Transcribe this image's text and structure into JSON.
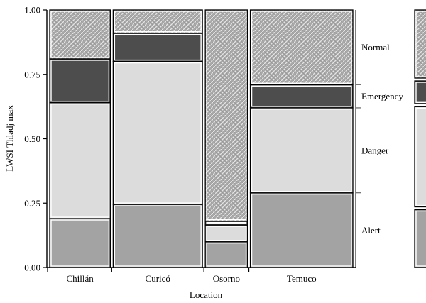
{
  "chart_data": {
    "type": "mosaic",
    "xlabel": "Location",
    "ylabel": "LWSI Thladj max",
    "ylim": [
      0,
      1
    ],
    "yticks": [
      "0.00",
      "0.25",
      "0.50",
      "0.75",
      "1.00"
    ],
    "levels": [
      "Alert",
      "Danger",
      "Emergency",
      "Normal"
    ],
    "level_colors": {
      "Alert": "#a3a3a3",
      "Danger": "#dcdcdc",
      "Emergency": "#4d4d4d",
      "Normal": "#b9b9b9"
    },
    "categories": [
      "Chillán",
      "Curicó",
      "Osorno",
      "Temuco"
    ],
    "column_widths": [
      0.27,
      0.398,
      0.188,
      0.457
    ],
    "proportions": {
      "Chillán": [
        0.19,
        0.45,
        0.17,
        0.19
      ],
      "Curicó": [
        0.245,
        0.555,
        0.11,
        0.09
      ],
      "Osorno": [
        0.1,
        0.065,
        0.015,
        0.82
      ],
      "Temuco": [
        0.29,
        0.33,
        0.09,
        0.29
      ]
    },
    "side_labels": [
      "Normal",
      "Emergency",
      "Danger",
      "Alert"
    ]
  }
}
